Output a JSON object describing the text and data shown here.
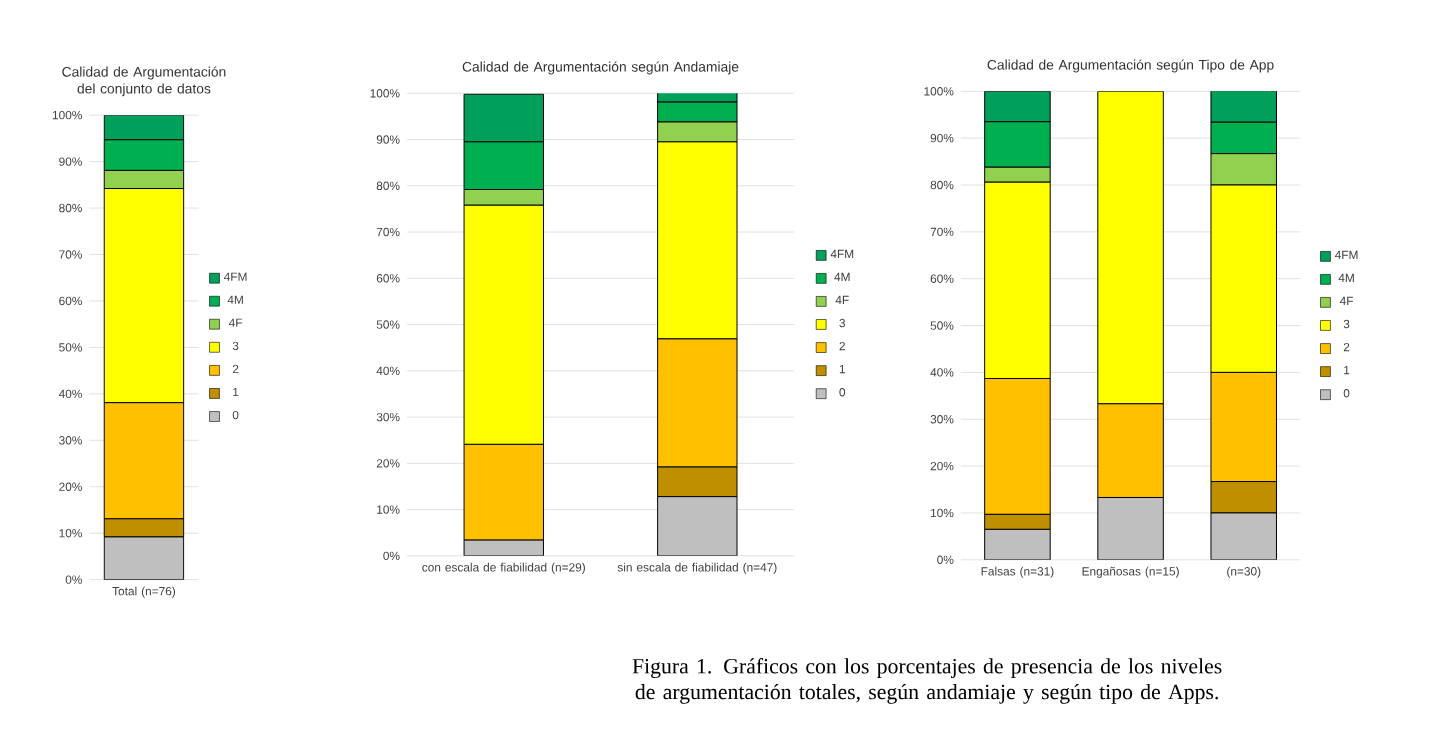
{
  "chart_data": [
    {
      "type": "bar",
      "stacked": true,
      "title": "Calidad de Argumentación del conjunto de datos",
      "categories": [
        "Total (n=76)"
      ],
      "series": [
        {
          "name": "0",
          "color": "#bfbfbf",
          "values": [
            9.2
          ]
        },
        {
          "name": "1",
          "color": "#bf8f00",
          "values": [
            3.9
          ]
        },
        {
          "name": "2",
          "color": "#ffc000",
          "values": [
            25.0
          ]
        },
        {
          "name": "3",
          "color": "#ffff00",
          "values": [
            46.1
          ]
        },
        {
          "name": "4F",
          "color": "#92d050",
          "values": [
            3.9
          ]
        },
        {
          "name": "4M",
          "color": "#00b050",
          "values": [
            6.6
          ]
        },
        {
          "name": "4FM",
          "color": "#00a05a",
          "values": [
            5.3
          ]
        }
      ],
      "ylim": [
        0,
        100
      ],
      "yticks": [
        {
          "value": 0,
          "label": "0%"
        },
        {
          "value": 10,
          "label": "10%"
        },
        {
          "value": 20,
          "label": "20%"
        },
        {
          "value": 30,
          "label": "30%"
        },
        {
          "value": 40,
          "label": "40%"
        },
        {
          "value": 50,
          "label": "50%"
        },
        {
          "value": 60,
          "label": "60%"
        },
        {
          "value": 70,
          "label": "70%"
        },
        {
          "value": 80,
          "label": "80%"
        },
        {
          "value": 90,
          "label": "90%"
        },
        {
          "value": 100,
          "label": "100%"
        }
      ],
      "grid": "y",
      "legend": "right"
    },
    {
      "type": "bar",
      "stacked": true,
      "title": "Calidad de Argumentación según Andamiaje",
      "categories": [
        "con escala de fiabilidad (n=29)",
        "sin escala de fiabilidad (n=47)"
      ],
      "series": [
        {
          "name": "0",
          "color": "#bfbfbf",
          "values": [
            3.4,
            12.8
          ]
        },
        {
          "name": "1",
          "color": "#bf8f00",
          "values": [
            0,
            6.4
          ]
        },
        {
          "name": "2",
          "color": "#ffc000",
          "values": [
            20.7,
            27.7
          ]
        },
        {
          "name": "3",
          "color": "#ffff00",
          "values": [
            51.7,
            42.6
          ]
        },
        {
          "name": "4F",
          "color": "#92d050",
          "values": [
            3.4,
            4.3
          ]
        },
        {
          "name": "4M",
          "color": "#00b050",
          "values": [
            10.3,
            4.3
          ]
        },
        {
          "name": "4FM",
          "color": "#00a05a",
          "values": [
            10.3,
            2.1
          ]
        }
      ],
      "ylim": [
        0,
        100
      ],
      "yticks": [
        {
          "value": 0,
          "label": "0%"
        },
        {
          "value": 10,
          "label": "10%"
        },
        {
          "value": 20,
          "label": "20%"
        },
        {
          "value": 30,
          "label": "30%"
        },
        {
          "value": 40,
          "label": "40%"
        },
        {
          "value": 50,
          "label": "50%"
        },
        {
          "value": 60,
          "label": "60%"
        },
        {
          "value": 70,
          "label": "70%"
        },
        {
          "value": 80,
          "label": "80%"
        },
        {
          "value": 90,
          "label": "90%"
        },
        {
          "value": 100,
          "label": "100%"
        }
      ],
      "grid": "y",
      "legend": "right"
    },
    {
      "type": "bar",
      "stacked": true,
      "title": "Calidad de Argumentación según Tipo de App",
      "categories": [
        "Falsas (n=31)",
        "Engañosas (n=15)",
        "(n=30)"
      ],
      "series": [
        {
          "name": "0",
          "color": "#bfbfbf",
          "values": [
            6.5,
            13.3,
            10.0
          ]
        },
        {
          "name": "1",
          "color": "#bf8f00",
          "values": [
            3.2,
            0,
            6.7
          ]
        },
        {
          "name": "2",
          "color": "#ffc000",
          "values": [
            29.0,
            20.0,
            23.3
          ]
        },
        {
          "name": "3",
          "color": "#ffff00",
          "values": [
            41.9,
            66.7,
            40.0
          ]
        },
        {
          "name": "4F",
          "color": "#92d050",
          "values": [
            3.2,
            0,
            6.7
          ]
        },
        {
          "name": "4M",
          "color": "#00b050",
          "values": [
            9.7,
            0,
            6.7
          ]
        },
        {
          "name": "4FM",
          "color": "#00a05a",
          "values": [
            6.5,
            0,
            6.7
          ]
        }
      ],
      "ylim": [
        0,
        100
      ],
      "yticks": [
        {
          "value": 0,
          "label": "0%"
        },
        {
          "value": 10,
          "label": "10%"
        },
        {
          "value": 20,
          "label": "20%"
        },
        {
          "value": 30,
          "label": "30%"
        },
        {
          "value": 40,
          "label": "40%"
        },
        {
          "value": 50,
          "label": "50%"
        },
        {
          "value": 60,
          "label": "60%"
        },
        {
          "value": 70,
          "label": "70%"
        },
        {
          "value": 80,
          "label": "80%"
        },
        {
          "value": 90,
          "label": "90%"
        },
        {
          "value": 100,
          "label": "100%"
        }
      ],
      "grid": "y",
      "legend": "right",
      "annotations": [
        "Figura 1. Gráficos con los porcentajes de presencia de los niveles de argumentación totales, según andamiaje y según tipo de Apps."
      ]
    }
  ]
}
